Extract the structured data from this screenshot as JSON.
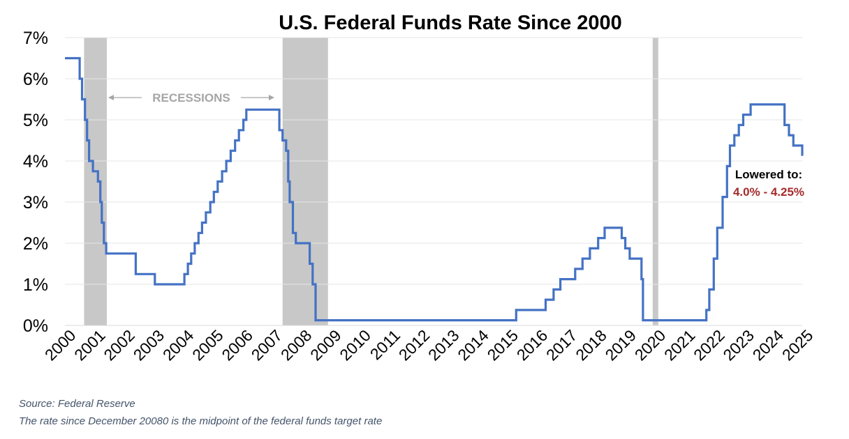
{
  "chart_data": {
    "type": "line",
    "title": "U.S. Federal Funds Rate Since 2000",
    "xlabel": "",
    "ylabel": "",
    "xlim": [
      2000,
      2025
    ],
    "ylim": [
      0,
      7
    ],
    "y_ticks": [
      "0%",
      "1%",
      "2%",
      "3%",
      "4%",
      "5%",
      "6%",
      "7%"
    ],
    "x_ticks": [
      "2000",
      "2001",
      "2002",
      "2003",
      "2004",
      "2005",
      "2006",
      "2007",
      "2008",
      "2009",
      "2010",
      "2011",
      "2012",
      "2013",
      "2014",
      "2015",
      "2016",
      "2017",
      "2018",
      "2019",
      "2020",
      "2021",
      "2022",
      "2023",
      "2024",
      "2025"
    ],
    "grid": true,
    "step_line": true,
    "line_color": "#4472c4",
    "recession_color": "#c8c8c8",
    "recessions": [
      {
        "start": 2000.65,
        "end": 2001.42
      },
      {
        "start": 2007.38,
        "end": 2008.92
      },
      {
        "start": 2019.93,
        "end": 2020.12
      }
    ],
    "recession_label": "RECESSIONS",
    "series": [
      {
        "name": "Federal Funds Rate",
        "points": [
          [
            2000.0,
            6.5
          ],
          [
            2000.5,
            6.5
          ],
          [
            2000.5,
            6.0
          ],
          [
            2000.58,
            6.0
          ],
          [
            2000.58,
            5.5
          ],
          [
            2000.68,
            5.5
          ],
          [
            2000.68,
            5.0
          ],
          [
            2000.75,
            5.0
          ],
          [
            2000.75,
            4.5
          ],
          [
            2000.82,
            4.5
          ],
          [
            2000.82,
            4.0
          ],
          [
            2000.95,
            4.0
          ],
          [
            2000.95,
            3.75
          ],
          [
            2001.12,
            3.75
          ],
          [
            2001.12,
            3.5
          ],
          [
            2001.2,
            3.5
          ],
          [
            2001.2,
            3.0
          ],
          [
            2001.25,
            3.0
          ],
          [
            2001.25,
            2.5
          ],
          [
            2001.32,
            2.5
          ],
          [
            2001.32,
            2.0
          ],
          [
            2001.4,
            2.0
          ],
          [
            2001.4,
            1.75
          ],
          [
            2002.4,
            1.75
          ],
          [
            2002.4,
            1.25
          ],
          [
            2003.05,
            1.25
          ],
          [
            2003.05,
            1.0
          ],
          [
            2004.05,
            1.0
          ],
          [
            2004.05,
            1.25
          ],
          [
            2004.17,
            1.25
          ],
          [
            2004.17,
            1.5
          ],
          [
            2004.28,
            1.5
          ],
          [
            2004.28,
            1.75
          ],
          [
            2004.4,
            1.75
          ],
          [
            2004.4,
            2.0
          ],
          [
            2004.53,
            2.0
          ],
          [
            2004.53,
            2.25
          ],
          [
            2004.65,
            2.25
          ],
          [
            2004.65,
            2.5
          ],
          [
            2004.78,
            2.5
          ],
          [
            2004.78,
            2.75
          ],
          [
            2004.93,
            2.75
          ],
          [
            2004.93,
            3.0
          ],
          [
            2005.05,
            3.0
          ],
          [
            2005.05,
            3.25
          ],
          [
            2005.18,
            3.25
          ],
          [
            2005.18,
            3.5
          ],
          [
            2005.33,
            3.5
          ],
          [
            2005.33,
            3.75
          ],
          [
            2005.47,
            3.75
          ],
          [
            2005.47,
            4.0
          ],
          [
            2005.62,
            4.0
          ],
          [
            2005.62,
            4.25
          ],
          [
            2005.77,
            4.25
          ],
          [
            2005.77,
            4.5
          ],
          [
            2005.9,
            4.5
          ],
          [
            2005.9,
            4.75
          ],
          [
            2006.05,
            4.75
          ],
          [
            2006.05,
            5.0
          ],
          [
            2006.15,
            5.0
          ],
          [
            2006.15,
            5.25
          ],
          [
            2007.27,
            5.25
          ],
          [
            2007.27,
            4.75
          ],
          [
            2007.38,
            4.75
          ],
          [
            2007.38,
            4.5
          ],
          [
            2007.5,
            4.5
          ],
          [
            2007.5,
            4.25
          ],
          [
            2007.57,
            4.25
          ],
          [
            2007.57,
            3.5
          ],
          [
            2007.62,
            3.5
          ],
          [
            2007.62,
            3.0
          ],
          [
            2007.73,
            3.0
          ],
          [
            2007.73,
            2.25
          ],
          [
            2007.83,
            2.25
          ],
          [
            2007.83,
            2.0
          ],
          [
            2008.3,
            2.0
          ],
          [
            2008.3,
            1.5
          ],
          [
            2008.4,
            1.5
          ],
          [
            2008.4,
            1.0
          ],
          [
            2008.5,
            1.0
          ],
          [
            2008.5,
            0.125
          ],
          [
            2015.3,
            0.125
          ],
          [
            2015.3,
            0.375
          ],
          [
            2016.3,
            0.375
          ],
          [
            2016.3,
            0.625
          ],
          [
            2016.57,
            0.625
          ],
          [
            2016.57,
            0.875
          ],
          [
            2016.8,
            0.875
          ],
          [
            2016.8,
            1.125
          ],
          [
            2017.3,
            1.125
          ],
          [
            2017.3,
            1.375
          ],
          [
            2017.55,
            1.375
          ],
          [
            2017.55,
            1.625
          ],
          [
            2017.8,
            1.625
          ],
          [
            2017.8,
            1.875
          ],
          [
            2018.08,
            1.875
          ],
          [
            2018.08,
            2.125
          ],
          [
            2018.3,
            2.125
          ],
          [
            2018.3,
            2.375
          ],
          [
            2018.88,
            2.375
          ],
          [
            2018.88,
            2.125
          ],
          [
            2019.0,
            2.125
          ],
          [
            2019.0,
            1.875
          ],
          [
            2019.15,
            1.875
          ],
          [
            2019.15,
            1.625
          ],
          [
            2019.55,
            1.625
          ],
          [
            2019.55,
            1.125
          ],
          [
            2019.6,
            1.125
          ],
          [
            2019.6,
            0.125
          ],
          [
            2021.75,
            0.125
          ],
          [
            2021.75,
            0.375
          ],
          [
            2021.85,
            0.375
          ],
          [
            2021.85,
            0.875
          ],
          [
            2022.0,
            0.875
          ],
          [
            2022.0,
            1.625
          ],
          [
            2022.12,
            1.625
          ],
          [
            2022.12,
            2.375
          ],
          [
            2022.3,
            2.375
          ],
          [
            2022.3,
            3.125
          ],
          [
            2022.45,
            3.125
          ],
          [
            2022.45,
            3.875
          ],
          [
            2022.55,
            3.875
          ],
          [
            2022.55,
            4.375
          ],
          [
            2022.7,
            4.375
          ],
          [
            2022.7,
            4.625
          ],
          [
            2022.85,
            4.625
          ],
          [
            2022.85,
            4.875
          ],
          [
            2023.0,
            4.875
          ],
          [
            2023.0,
            5.125
          ],
          [
            2023.25,
            5.125
          ],
          [
            2023.25,
            5.375
          ],
          [
            2024.4,
            5.375
          ],
          [
            2024.4,
            4.875
          ],
          [
            2024.55,
            4.875
          ],
          [
            2024.55,
            4.625
          ],
          [
            2024.7,
            4.625
          ],
          [
            2024.7,
            4.375
          ],
          [
            2025.0,
            4.375
          ],
          [
            2025.0,
            4.125
          ]
        ]
      }
    ],
    "annotation": {
      "line1": "Lowered to:",
      "line2": "4.0% - 4.25%"
    }
  },
  "footnotes": {
    "source": "Source: Federal Reserve",
    "note": "The rate since December 20080 is the midpoint of the federal funds target rate"
  }
}
